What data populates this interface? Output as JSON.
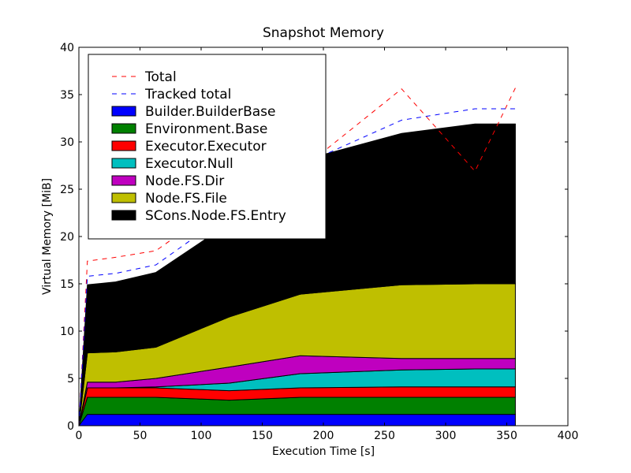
{
  "chart_data": {
    "type": "area",
    "stacked": true,
    "title": "Snapshot Memory",
    "xlabel": "Execution Time [s]",
    "ylabel": "Virtual Memory [MiB]",
    "xlim": [
      0,
      400
    ],
    "ylim": [
      0,
      40
    ],
    "xticks": [
      "0",
      "50",
      "100",
      "150",
      "200",
      "250",
      "300",
      "350",
      "400"
    ],
    "yticks": [
      "0",
      "5",
      "10",
      "15",
      "20",
      "25",
      "30",
      "35",
      "40"
    ],
    "grid": false,
    "legend_position": "top-left",
    "x": [
      0,
      7,
      30,
      63,
      123,
      181,
      264,
      324,
      357
    ],
    "series": [
      {
        "name": "Builder.BuilderBase",
        "color": "#0000ff",
        "values": [
          0,
          1.2,
          1.2,
          1.2,
          1.2,
          1.2,
          1.2,
          1.2,
          1.2
        ]
      },
      {
        "name": "Environment.Base",
        "color": "#008000",
        "values": [
          0,
          1.8,
          1.8,
          1.8,
          1.5,
          1.8,
          1.8,
          1.8,
          1.8
        ]
      },
      {
        "name": "Executor.Executor",
        "color": "#ff0000",
        "values": [
          0,
          1.0,
          1.0,
          1.0,
          1.0,
          1.0,
          1.1,
          1.1,
          1.1
        ]
      },
      {
        "name": "Executor.Null",
        "color": "#00bfbf",
        "values": [
          0,
          0,
          0,
          0.1,
          0.8,
          1.5,
          1.8,
          1.9,
          1.9
        ]
      },
      {
        "name": "Node.FS.Dir",
        "color": "#bf00bf",
        "values": [
          0,
          0.6,
          0.6,
          0.9,
          1.7,
          1.9,
          1.2,
          1.1,
          1.1
        ]
      },
      {
        "name": "Node.FS.File",
        "color": "#bfbf00",
        "values": [
          0,
          3.1,
          3.2,
          3.3,
          5.3,
          6.5,
          7.8,
          7.9,
          7.9
        ]
      },
      {
        "name": "SCons.Node.FS.Entry",
        "color": "#000000",
        "values": [
          0,
          7.2,
          7.4,
          7.9,
          9.9,
          14.1,
          16.0,
          16.9,
          16.9
        ]
      }
    ],
    "lines": [
      {
        "name": "Total",
        "color": "#ff0000",
        "dash": true,
        "values": [
          0,
          17.4,
          17.8,
          18.5,
          24.0,
          27.0,
          35.6,
          26.9,
          35.7
        ]
      },
      {
        "name": "Tracked total",
        "color": "#0000ff",
        "dash": true,
        "values": [
          0,
          15.8,
          16.1,
          17.0,
          22.5,
          27.5,
          32.3,
          33.5,
          33.5
        ]
      }
    ]
  }
}
